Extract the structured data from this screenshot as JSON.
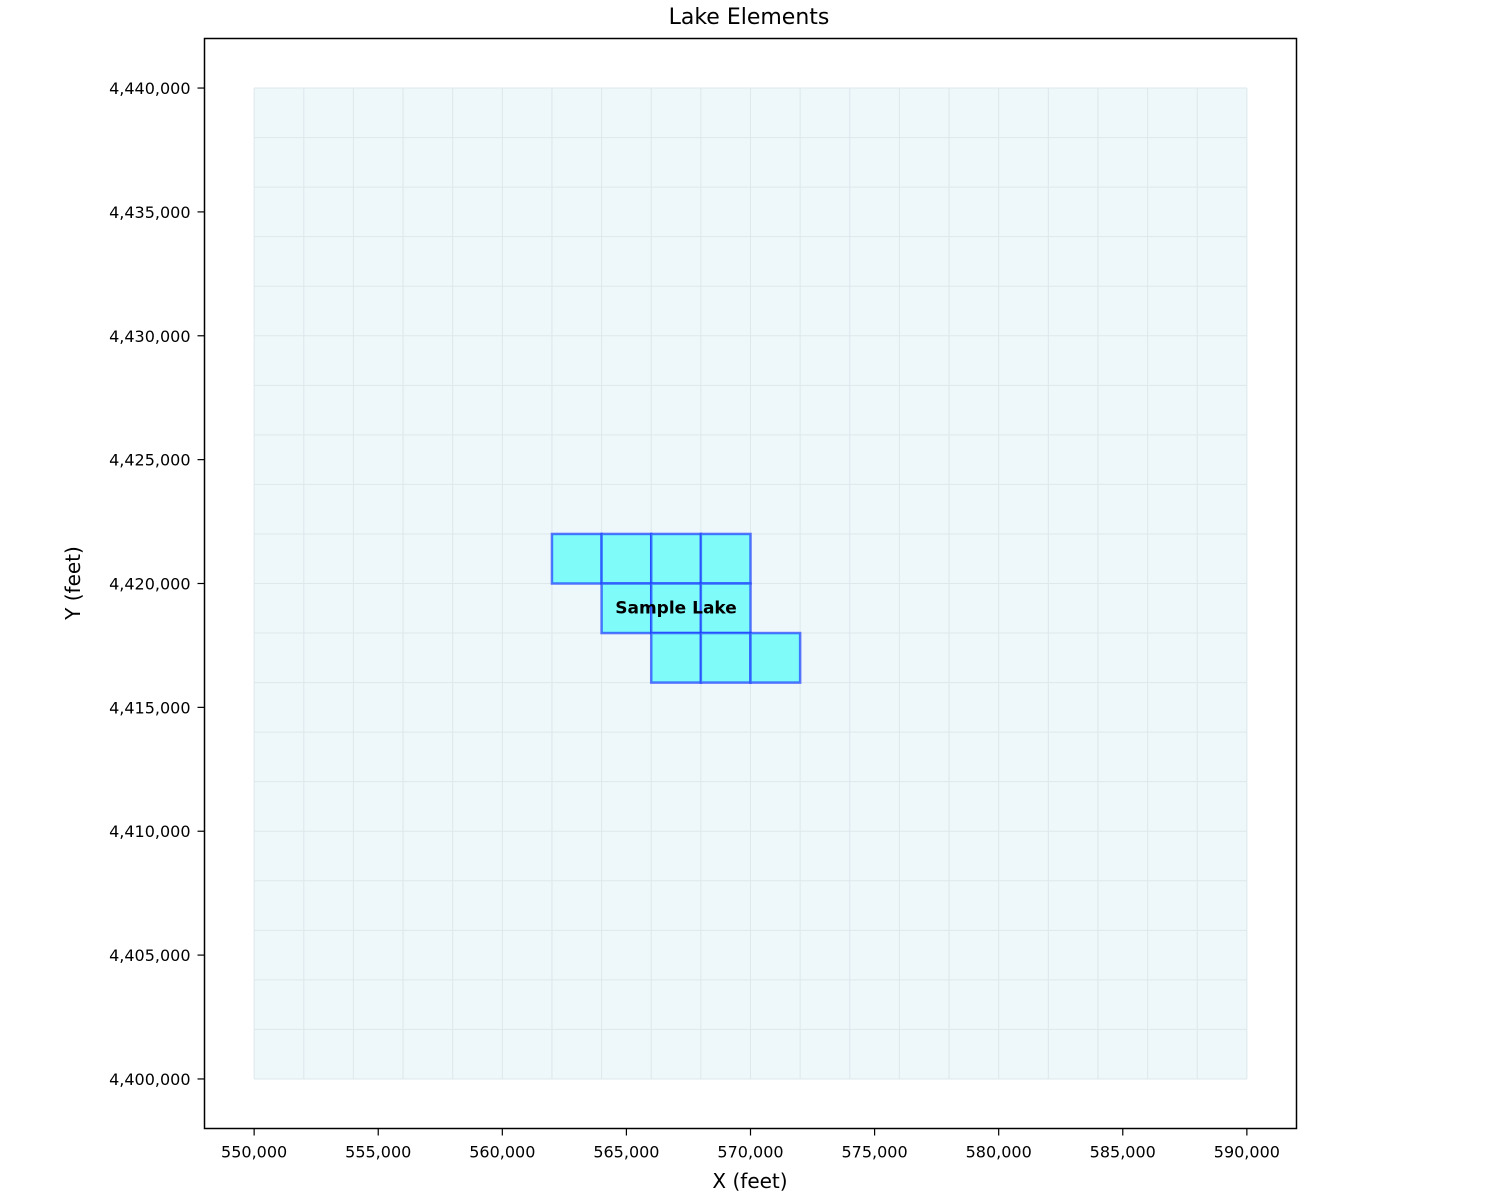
{
  "chart_data": {
    "type": "map",
    "title": "Lake Elements",
    "xlabel": "X (feet)",
    "ylabel": "Y (feet)",
    "xlim": [
      548000,
      592000
    ],
    "ylim": [
      4398000,
      4442000
    ],
    "xticks": [
      550000,
      555000,
      560000,
      565000,
      570000,
      575000,
      580000,
      585000,
      590000
    ],
    "yticks": [
      4400000,
      4405000,
      4410000,
      4415000,
      4420000,
      4425000,
      4430000,
      4435000,
      4440000
    ],
    "xtick_labels": [
      "550,000",
      "555,000",
      "560,000",
      "565,000",
      "570,000",
      "575,000",
      "580,000",
      "585,000",
      "590,000"
    ],
    "ytick_labels": [
      "4,400,000",
      "4,405,000",
      "4,410,000",
      "4,415,000",
      "4,420,000",
      "4,425,000",
      "4,430,000",
      "4,435,000",
      "4,440,000"
    ],
    "mesh": {
      "x_range": [
        550000,
        590000
      ],
      "y_range": [
        4400000,
        4440000
      ],
      "cell_size": 2000,
      "fill_color": "#eef7f9",
      "line_color": "#dde8ec"
    },
    "lake": {
      "name": "Sample Lake",
      "fill_color": "#7ffcfa",
      "edge_color": "#1d3fff",
      "label_position": [
        567000,
        4419000
      ],
      "elements": [
        {
          "x": 562000,
          "y": 4420000
        },
        {
          "x": 564000,
          "y": 4420000
        },
        {
          "x": 566000,
          "y": 4420000
        },
        {
          "x": 568000,
          "y": 4420000
        },
        {
          "x": 564000,
          "y": 4418000
        },
        {
          "x": 566000,
          "y": 4418000
        },
        {
          "x": 568000,
          "y": 4418000
        },
        {
          "x": 566000,
          "y": 4416000
        },
        {
          "x": 568000,
          "y": 4416000
        },
        {
          "x": 570000,
          "y": 4416000
        }
      ]
    },
    "grid": false,
    "legend": "none"
  }
}
